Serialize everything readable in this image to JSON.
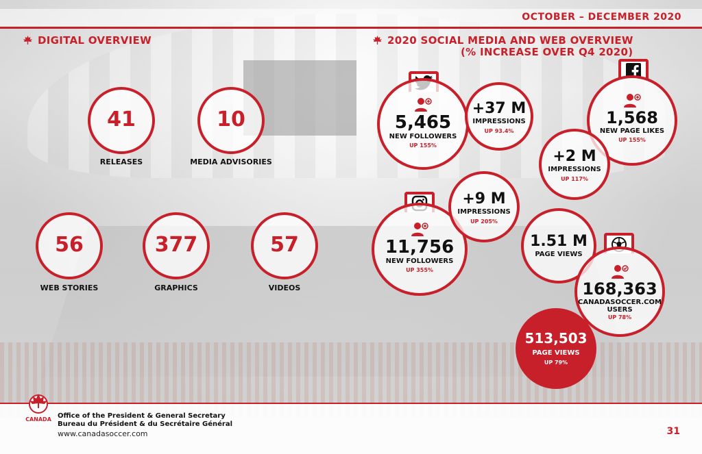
{
  "header": {
    "date_range": "OCTOBER – DECEMBER 2020"
  },
  "digital_overview": {
    "title": "DIGITAL OVERVIEW",
    "stats": [
      {
        "value": "41",
        "label": "RELEASES"
      },
      {
        "value": "10",
        "label": "MEDIA ADVISORIES"
      },
      {
        "value": "56",
        "label": "WEB STORIES"
      },
      {
        "value": "377",
        "label": "GRAPHICS"
      },
      {
        "value": "57",
        "label": "VIDEOS"
      }
    ]
  },
  "social": {
    "title_line1": "2020 SOCIAL MEDIA AND WEB OVERVIEW",
    "title_line2": "(% INCREASE OVER Q4 2020)",
    "twitter": {
      "followers": {
        "value": "5,465",
        "label": "NEW FOLLOWERS",
        "change": "UP 155%"
      },
      "impressions": {
        "value": "+37 M",
        "label": "IMPRESSIONS",
        "change": "UP 93.4%"
      }
    },
    "facebook": {
      "likes": {
        "value": "1,568",
        "label": "NEW PAGE LIKES",
        "change": "UP 155%"
      },
      "impressions": {
        "value": "+2 M",
        "label": "IMPRESSIONS",
        "change": "UP 117%"
      }
    },
    "instagram": {
      "followers": {
        "value": "11,756",
        "label": "NEW FOLLOWERS",
        "change": "UP 355%"
      },
      "impressions": {
        "value": "+9 M",
        "label": "IMPRESSIONS",
        "change": "UP 205%"
      }
    },
    "web": {
      "page_views_small": {
        "value": "1.51 M",
        "label": "PAGE VIEWS"
      },
      "users": {
        "value": "168,363",
        "label_line1": "CANADASOCCER.COM",
        "label_line2": "USERS",
        "change": "UP 78%"
      },
      "page_views_big": {
        "value": "513,503",
        "label": "PAGE VIEWS",
        "change": "UP 79%"
      }
    }
  },
  "footer": {
    "logo_text": "CANADA",
    "office_en": "Office of the President & General Secretary",
    "office_fr": "Bureau du Président & du Secrétaire Général",
    "url": "www.canadasoccer.com",
    "page_number": "31"
  },
  "colors": {
    "accent": "#c8202a"
  }
}
